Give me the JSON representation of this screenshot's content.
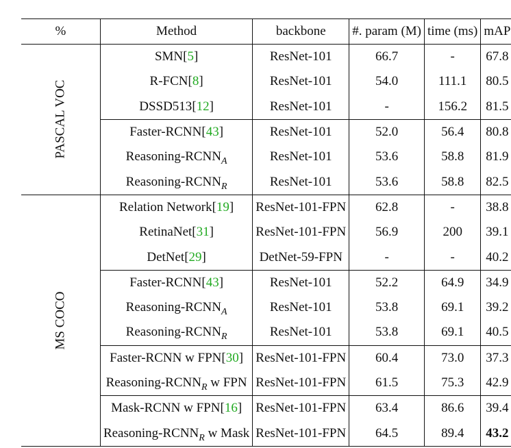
{
  "header": {
    "pct": "%",
    "method": "Method",
    "backbone": "backbone",
    "params": "#. param (M)",
    "time": "time (ms)",
    "map": "mAP"
  },
  "datasets": {
    "voc": "PASCAL VOC",
    "coco": "MS COCO"
  },
  "rows": [
    {
      "name": "SMN",
      "sub": "",
      "suffix": "",
      "cite": "5",
      "backbone": "ResNet-101",
      "params": "66.7",
      "time": "-",
      "map": "67.8"
    },
    {
      "name": "R-FCN",
      "sub": "",
      "suffix": "",
      "cite": "8",
      "backbone": "ResNet-101",
      "params": "54.0",
      "time": "111.1",
      "map": "80.5"
    },
    {
      "name": "DSSD513",
      "sub": "",
      "suffix": "",
      "cite": "12",
      "backbone": "ResNet-101",
      "params": "-",
      "time": "156.2",
      "map": "81.5"
    },
    {
      "name": "Faster-RCNN",
      "sub": "",
      "suffix": "",
      "cite": "43",
      "backbone": "ResNet-101",
      "params": "52.0",
      "time": "56.4",
      "map": "80.8"
    },
    {
      "name": "Reasoning-RCNN",
      "sub": "A",
      "suffix": "",
      "cite": "",
      "backbone": "ResNet-101",
      "params": "53.6",
      "time": "58.8",
      "map": "81.9"
    },
    {
      "name": "Reasoning-RCNN",
      "sub": "R",
      "suffix": "",
      "cite": "",
      "backbone": "ResNet-101",
      "params": "53.6",
      "time": "58.8",
      "map": "82.5"
    },
    {
      "name": "Relation Network",
      "sub": "",
      "suffix": "",
      "cite": "19",
      "backbone": "ResNet-101-FPN",
      "params": "62.8",
      "time": "-",
      "map": "38.8"
    },
    {
      "name": "RetinaNet",
      "sub": "",
      "suffix": "",
      "cite": "31",
      "backbone": "ResNet-101-FPN",
      "params": "56.9",
      "time": "200",
      "map": "39.1"
    },
    {
      "name": "DetNet",
      "sub": "",
      "suffix": "",
      "cite": "29",
      "backbone": "DetNet-59-FPN",
      "params": "-",
      "time": "-",
      "map": "40.2"
    },
    {
      "name": "Faster-RCNN",
      "sub": "",
      "suffix": "",
      "cite": "43",
      "backbone": "ResNet-101",
      "params": "52.2",
      "time": "64.9",
      "map": "34.9"
    },
    {
      "name": "Reasoning-RCNN",
      "sub": "A",
      "suffix": "",
      "cite": "",
      "backbone": "ResNet-101",
      "params": "53.8",
      "time": "69.1",
      "map": "39.2"
    },
    {
      "name": "Reasoning-RCNN",
      "sub": "R",
      "suffix": "",
      "cite": "",
      "backbone": "ResNet-101",
      "params": "53.8",
      "time": "69.1",
      "map": "40.5"
    },
    {
      "name": "Faster-RCNN w FPN",
      "sub": "",
      "suffix": "",
      "cite": "30",
      "backbone": "ResNet-101-FPN",
      "params": "60.4",
      "time": "73.0",
      "map": "37.3"
    },
    {
      "name": "Reasoning-RCNN",
      "sub": "R",
      "suffix": " w FPN",
      "cite": "",
      "backbone": "ResNet-101-FPN",
      "params": "61.5",
      "time": "75.3",
      "map": "42.9"
    },
    {
      "name": "Mask-RCNN w FPN",
      "sub": "",
      "suffix": "",
      "cite": "16",
      "backbone": "ResNet-101-FPN",
      "params": "63.4",
      "time": "86.6",
      "map": "39.4"
    },
    {
      "name": "Reasoning-RCNN",
      "sub": "R",
      "suffix": " w Mask",
      "cite": "",
      "backbone": "ResNet-101-FPN",
      "params": "64.5",
      "time": "89.4",
      "map": "43.2"
    }
  ],
  "colors": {
    "citation": "#22aa22",
    "text": "#111111",
    "background": "#ffffff"
  }
}
